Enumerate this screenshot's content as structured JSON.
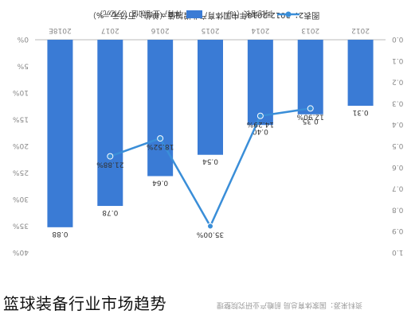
{
  "caption": "篮球装备行业市场趋势",
  "source_note": "资料来源：国家体育总局 前瞻产业研究院整理",
  "colors": {
    "bar": "#3a7bd5",
    "line": "#3a8ed8",
    "text": "#333333",
    "axis": "#888888"
  },
  "chart_data": {
    "type": "bar",
    "title": "图表2：2012-2018年中国体育产业增加值（单位：万亿元，%）",
    "xlabel": "",
    "ylabel_left": "",
    "ylabel_right": "",
    "categories": [
      "2018E",
      "2017",
      "2016",
      "2015",
      "2014",
      "2013",
      "2012"
    ],
    "y_left_ticks": [
      "40%",
      "35%",
      "30%",
      "25%",
      "20%",
      "15%",
      "10%",
      "5%",
      "0%"
    ],
    "y_right_ticks": [
      "1.0",
      "0.9",
      "0.8",
      "0.7",
      "0.6",
      "0.5",
      "0.4",
      "0.3",
      "0.2",
      "0.1",
      "0.0"
    ],
    "ylim_left": [
      0,
      40
    ],
    "ylim_right": [
      0,
      1.0
    ],
    "series": [
      {
        "name": "体育产业增加值（万亿元）",
        "type": "bar",
        "values": [
          0.88,
          0.78,
          0.64,
          0.54,
          0.4,
          0.35,
          0.31
        ],
        "labels": [
          "0.88",
          "0.78",
          "0.64",
          "0.54",
          "0.40",
          "0.35",
          "0.31"
        ]
      },
      {
        "name": "同比增长（%）",
        "type": "line",
        "values": [
          null,
          21.88,
          18.52,
          35.0,
          14.29,
          12.9,
          null
        ],
        "labels": [
          "",
          "21.88%",
          "18.52%",
          "35.00%",
          "14.29%",
          "12.90%",
          ""
        ]
      }
    ],
    "legend_position": "bottom",
    "grid": false,
    "image_rotated_180": true
  }
}
